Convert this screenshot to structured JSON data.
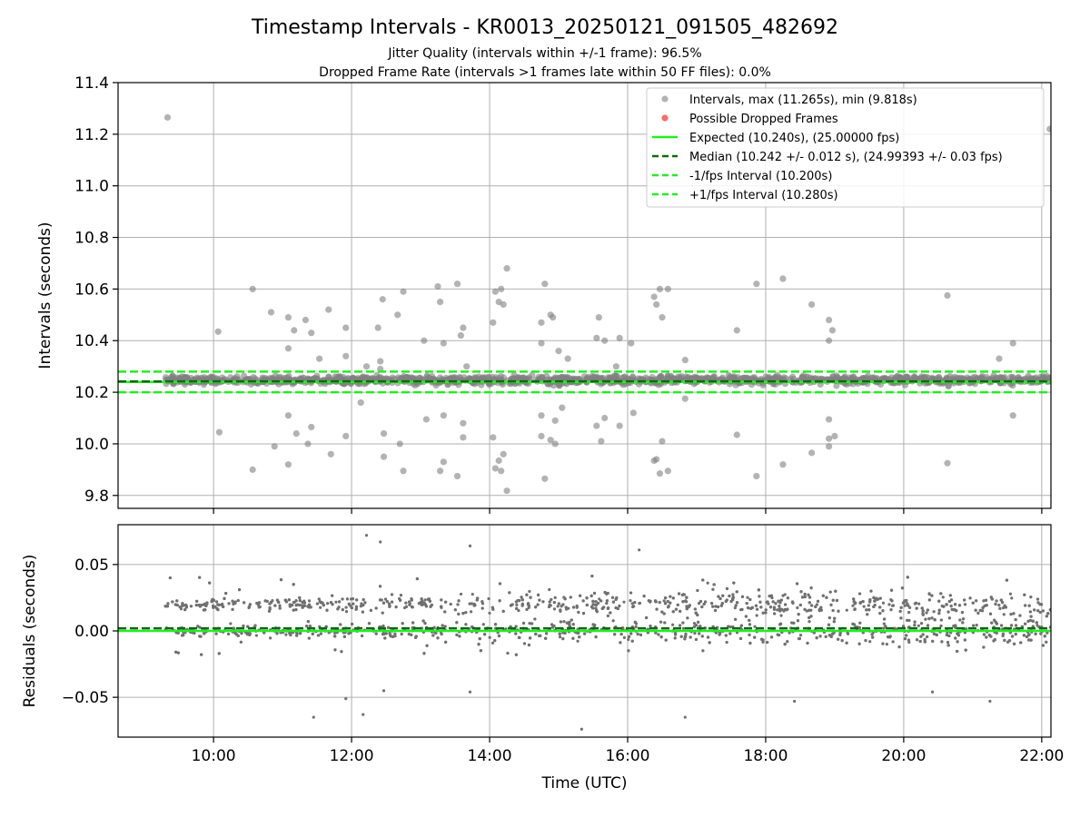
{
  "figure": {
    "title": "Timestamp Intervals - KR0013_20250121_091505_482692",
    "subtitle_1": "Jitter Quality (intervals within +/-1 frame): 96.5%",
    "subtitle_2": "Dropped Frame Rate (intervals >1 frames late within 50 FF files): 0.0%"
  },
  "colors": {
    "interval_points": "#808080",
    "dropped_points": "#ff5050",
    "expected": "#22ee22",
    "median": "#0c6a0c",
    "bounds": "#22ee22",
    "residual_points": "#707070",
    "grid": "#b0b0b0"
  },
  "chart_data": [
    {
      "type": "scatter",
      "panel": "intervals",
      "xlabel": "",
      "ylabel": "Intervals (seconds)",
      "xlim": [
        "08:37",
        "22:08"
      ],
      "ylim": [
        9.75,
        11.4
      ],
      "xticks": [
        "10:00",
        "12:00",
        "14:00",
        "16:00",
        "18:00",
        "20:00",
        "22:00"
      ],
      "yticks": [
        "9.8",
        "10.0",
        "10.2",
        "10.4",
        "10.6",
        "10.8",
        "11.0",
        "11.2",
        "11.4"
      ],
      "grid": true,
      "legend_position": "top-right",
      "legend": [
        "Intervals, max (11.265s), min (9.818s)",
        "Possible Dropped Frames",
        "Expected (10.240s), (25.00000 fps)",
        "Median (10.242 +/- 0.012 s), (24.99393 +/- 0.03 fps)",
        "-1/fps Interval (10.200s)",
        "+1/fps Interval (10.280s)"
      ],
      "series": [
        {
          "name": "Intervals, max (11.265s), min (9.818s)",
          "style": "points",
          "x_range": [
            "09:18",
            "22:08"
          ],
          "typical_range": [
            10.21,
            10.28
          ],
          "outliers": [
            {
              "x": "09:20",
              "y": 11.265
            },
            {
              "x": "10:04",
              "y": 10.435
            },
            {
              "x": "10:05",
              "y": 10.045
            },
            {
              "x": "10:34",
              "y": 10.6
            },
            {
              "x": "10:34",
              "y": 9.9
            },
            {
              "x": "10:50",
              "y": 10.51
            },
            {
              "x": "10:53",
              "y": 9.99
            },
            {
              "x": "11:05",
              "y": 10.49
            },
            {
              "x": "11:05",
              "y": 10.37
            },
            {
              "x": "11:05",
              "y": 10.11
            },
            {
              "x": "11:05",
              "y": 9.92
            },
            {
              "x": "11:10",
              "y": 10.44
            },
            {
              "x": "11:12",
              "y": 10.04
            },
            {
              "x": "11:20",
              "y": 10.48
            },
            {
              "x": "11:22",
              "y": 10.0
            },
            {
              "x": "11:25",
              "y": 10.43
            },
            {
              "x": "11:25",
              "y": 10.065
            },
            {
              "x": "11:32",
              "y": 10.33
            },
            {
              "x": "11:40",
              "y": 10.52
            },
            {
              "x": "11:42",
              "y": 9.96
            },
            {
              "x": "11:55",
              "y": 10.45
            },
            {
              "x": "11:55",
              "y": 10.34
            },
            {
              "x": "11:55",
              "y": 10.03
            },
            {
              "x": "12:08",
              "y": 10.16
            },
            {
              "x": "12:13",
              "y": 10.3
            },
            {
              "x": "12:23",
              "y": 10.45
            },
            {
              "x": "12:25",
              "y": 10.32
            },
            {
              "x": "12:25",
              "y": 10.29
            },
            {
              "x": "12:27",
              "y": 10.56
            },
            {
              "x": "12:28",
              "y": 10.04
            },
            {
              "x": "12:28",
              "y": 9.95
            },
            {
              "x": "12:40",
              "y": 10.5
            },
            {
              "x": "12:42",
              "y": 10.0
            },
            {
              "x": "12:45",
              "y": 10.59
            },
            {
              "x": "12:45",
              "y": 9.895
            },
            {
              "x": "13:03",
              "y": 10.4
            },
            {
              "x": "13:05",
              "y": 10.095
            },
            {
              "x": "13:15",
              "y": 10.61
            },
            {
              "x": "13:17",
              "y": 10.55
            },
            {
              "x": "13:17",
              "y": 9.895
            },
            {
              "x": "13:20",
              "y": 10.39
            },
            {
              "x": "13:20",
              "y": 10.11
            },
            {
              "x": "13:20",
              "y": 9.93
            },
            {
              "x": "13:32",
              "y": 10.62
            },
            {
              "x": "13:32",
              "y": 9.875
            },
            {
              "x": "13:35",
              "y": 10.42
            },
            {
              "x": "13:37",
              "y": 10.45
            },
            {
              "x": "13:37",
              "y": 10.08
            },
            {
              "x": "13:37",
              "y": 10.025
            },
            {
              "x": "13:40",
              "y": 10.3
            },
            {
              "x": "14:03",
              "y": 10.47
            },
            {
              "x": "14:03",
              "y": 10.025
            },
            {
              "x": "14:05",
              "y": 10.59
            },
            {
              "x": "14:05",
              "y": 9.905
            },
            {
              "x": "14:08",
              "y": 10.55
            },
            {
              "x": "14:08",
              "y": 9.935
            },
            {
              "x": "14:10",
              "y": 10.6
            },
            {
              "x": "14:10",
              "y": 9.895
            },
            {
              "x": "14:12",
              "y": 10.54
            },
            {
              "x": "14:12",
              "y": 9.96
            },
            {
              "x": "14:15",
              "y": 10.68
            },
            {
              "x": "14:15",
              "y": 9.818
            },
            {
              "x": "14:45",
              "y": 10.47
            },
            {
              "x": "14:45",
              "y": 10.03
            },
            {
              "x": "14:48",
              "y": 10.62
            },
            {
              "x": "14:48",
              "y": 9.865
            },
            {
              "x": "14:45",
              "y": 10.39
            },
            {
              "x": "14:45",
              "y": 10.11
            },
            {
              "x": "14:53",
              "y": 10.5
            },
            {
              "x": "14:53",
              "y": 10.015
            },
            {
              "x": "14:55",
              "y": 10.49
            },
            {
              "x": "14:57",
              "y": 10.09
            },
            {
              "x": "14:57",
              "y": 10.0
            },
            {
              "x": "15:00",
              "y": 10.36
            },
            {
              "x": "15:03",
              "y": 10.14
            },
            {
              "x": "15:08",
              "y": 10.33
            },
            {
              "x": "15:33",
              "y": 10.41
            },
            {
              "x": "15:33",
              "y": 10.07
            },
            {
              "x": "15:35",
              "y": 10.49
            },
            {
              "x": "15:37",
              "y": 10.01
            },
            {
              "x": "15:40",
              "y": 10.4
            },
            {
              "x": "15:40",
              "y": 10.1
            },
            {
              "x": "15:50",
              "y": 10.3
            },
            {
              "x": "15:53",
              "y": 10.41
            },
            {
              "x": "15:53",
              "y": 10.07
            },
            {
              "x": "16:03",
              "y": 10.39
            },
            {
              "x": "16:05",
              "y": 10.12
            },
            {
              "x": "16:23",
              "y": 10.57
            },
            {
              "x": "16:23",
              "y": 9.935
            },
            {
              "x": "16:25",
              "y": 10.54
            },
            {
              "x": "16:25",
              "y": 9.94
            },
            {
              "x": "16:28",
              "y": 10.6
            },
            {
              "x": "16:28",
              "y": 9.885
            },
            {
              "x": "16:30",
              "y": 10.49
            },
            {
              "x": "16:30",
              "y": 10.01
            },
            {
              "x": "16:35",
              "y": 10.6
            },
            {
              "x": "16:35",
              "y": 9.895
            },
            {
              "x": "16:50",
              "y": 10.325
            },
            {
              "x": "16:50",
              "y": 10.175
            },
            {
              "x": "17:35",
              "y": 10.44
            },
            {
              "x": "17:35",
              "y": 10.035
            },
            {
              "x": "17:52",
              "y": 10.62
            },
            {
              "x": "17:52",
              "y": 9.875
            },
            {
              "x": "18:15",
              "y": 10.64
            },
            {
              "x": "18:15",
              "y": 9.92
            },
            {
              "x": "18:40",
              "y": 10.54
            },
            {
              "x": "18:40",
              "y": 9.965
            },
            {
              "x": "18:55",
              "y": 10.48
            },
            {
              "x": "18:55",
              "y": 10.4
            },
            {
              "x": "18:55",
              "y": 10.095
            },
            {
              "x": "18:55",
              "y": 10.02
            },
            {
              "x": "18:58",
              "y": 10.44
            },
            {
              "x": "19:00",
              "y": 10.03
            },
            {
              "x": "18:55",
              "y": 9.99
            },
            {
              "x": "20:38",
              "y": 10.575
            },
            {
              "x": "20:38",
              "y": 9.925
            },
            {
              "x": "21:23",
              "y": 10.33
            },
            {
              "x": "21:35",
              "y": 10.39
            },
            {
              "x": "21:35",
              "y": 10.11
            },
            {
              "x": "22:07",
              "y": 11.22
            }
          ]
        },
        {
          "name": "Possible Dropped Frames",
          "style": "points",
          "values": []
        },
        {
          "name": "Expected (10.240s), (25.00000 fps)",
          "style": "solid line",
          "y": 10.24
        },
        {
          "name": "Median (10.242 +/- 0.012 s), (24.99393 +/- 0.03 fps)",
          "style": "dashed line",
          "y": 10.242
        },
        {
          "name": "-1/fps Interval (10.200s)",
          "style": "dashed line",
          "y": 10.2
        },
        {
          "name": "+1/fps Interval (10.280s)",
          "style": "dashed line",
          "y": 10.28
        }
      ]
    },
    {
      "type": "scatter",
      "panel": "residuals",
      "xlabel": "Time (UTC)",
      "ylabel": "Residuals (seconds)",
      "xlim": [
        "08:37",
        "22:08"
      ],
      "ylim": [
        -0.08,
        0.08
      ],
      "xticks": [
        "10:00",
        "12:00",
        "14:00",
        "16:00",
        "18:00",
        "20:00",
        "22:00"
      ],
      "yticks": [
        "−0.05",
        "0.00",
        "0.05"
      ],
      "grid": true,
      "series": [
        {
          "style": "points",
          "x_range": [
            "09:18",
            "22:08"
          ],
          "bands": [
            0.0,
            0.02
          ],
          "typical_range": [
            -0.025,
            0.045
          ],
          "outliers": [
            {
              "x": "12:13",
              "y": 0.072
            },
            {
              "x": "12:25",
              "y": 0.067
            },
            {
              "x": "13:43",
              "y": 0.064
            },
            {
              "x": "16:10",
              "y": 0.061
            },
            {
              "x": "11:27",
              "y": -0.065
            },
            {
              "x": "11:55",
              "y": -0.051
            },
            {
              "x": "12:10",
              "y": -0.063
            },
            {
              "x": "12:28",
              "y": -0.045
            },
            {
              "x": "13:43",
              "y": -0.046
            },
            {
              "x": "15:20",
              "y": -0.074
            },
            {
              "x": "16:50",
              "y": -0.065
            },
            {
              "x": "18:25",
              "y": -0.053
            },
            {
              "x": "20:25",
              "y": -0.046
            },
            {
              "x": "21:15",
              "y": -0.053
            }
          ]
        },
        {
          "style": "solid line",
          "y": 0.0
        },
        {
          "style": "dashed line",
          "y": 0.002
        }
      ]
    }
  ]
}
